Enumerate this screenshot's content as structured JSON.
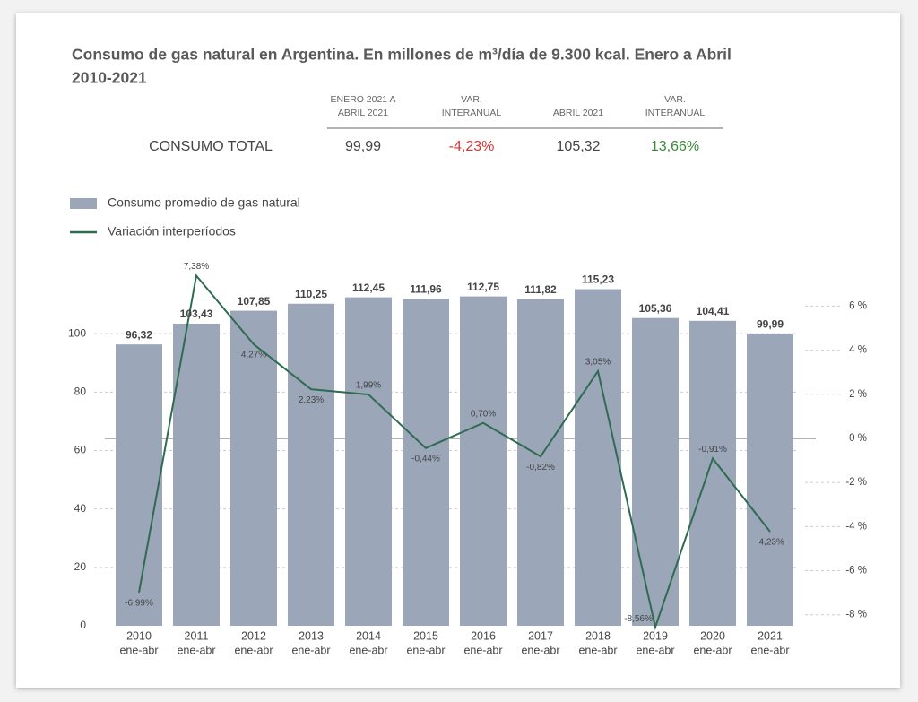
{
  "title": "Consumo de gas natural en Argentina. En millones de m³/día de 9.300 kcal. Enero a Abril",
  "title_line2": "2010-2021",
  "summary": {
    "headers": [
      [
        "ENERO 2021 A",
        "ABRIL 2021"
      ],
      [
        "VAR.",
        "INTERANUAL"
      ],
      [
        "ABRIL 2021"
      ],
      [
        "VAR.",
        "INTERANUAL"
      ]
    ],
    "row_label": "CONSUMO TOTAL",
    "values": [
      "99,99",
      "-4,23%",
      "105,32",
      "13,66%"
    ]
  },
  "chart_data": {
    "type": "bar",
    "categories": [
      [
        "2010",
        "ene-abr"
      ],
      [
        "2011",
        "ene-abr"
      ],
      [
        "2012",
        "ene-abr"
      ],
      [
        "2013",
        "ene-abr"
      ],
      [
        "2014",
        "ene-abr"
      ],
      [
        "2015",
        "ene-abr"
      ],
      [
        "2016",
        "ene-abr"
      ],
      [
        "2017",
        "ene-abr"
      ],
      [
        "2018",
        "ene-abr"
      ],
      [
        "2019",
        "ene-abr"
      ],
      [
        "2020",
        "ene-abr"
      ],
      [
        "2021",
        "ene-abr"
      ]
    ],
    "series": [
      {
        "name": "Consumo promedio de gas natural",
        "type": "bar",
        "color": "#9ba6b9",
        "values": [
          96.32,
          103.43,
          107.85,
          110.25,
          112.45,
          111.96,
          112.75,
          111.82,
          115.23,
          105.36,
          104.41,
          99.99
        ],
        "value_labels": [
          "96,32",
          "103,43",
          "107,85",
          "110,25",
          "112,45",
          "111,96",
          "112,75",
          "111,82",
          "115,23",
          "105,36",
          "104,41",
          "99,99"
        ]
      },
      {
        "name": "Variación interperíodos",
        "type": "line",
        "axis": "y2",
        "color": "#2f6b50",
        "values": [
          -6.99,
          7.38,
          4.27,
          2.23,
          1.99,
          -0.44,
          0.7,
          -0.82,
          3.05,
          -8.56,
          -0.91,
          -4.23
        ],
        "value_labels": [
          "-6,99%",
          "7,38%",
          "4,27%",
          "2,23%",
          "1,99%",
          "-0,44%",
          "0,70%",
          "-0,82%",
          "3,05%",
          "-8,56%",
          "-0,91%",
          "-4,23%"
        ]
      }
    ],
    "ylim": [
      0,
      120
    ],
    "yticks": [
      0,
      20,
      40,
      60,
      80,
      100
    ],
    "y2lim": [
      -8.5,
      7.4
    ],
    "y2ticks": [
      {
        "value": 6,
        "label": "6 %"
      },
      {
        "value": 4,
        "label": "4 %"
      },
      {
        "value": 2,
        "label": "2 %"
      },
      {
        "value": 0,
        "label": "0 %"
      },
      {
        "value": -2,
        "label": "-2 %"
      },
      {
        "value": -4,
        "label": "-4 %"
      },
      {
        "value": -6,
        "label": "-6 %"
      },
      {
        "value": -8,
        "label": "-8 %"
      }
    ],
    "grid": true
  }
}
